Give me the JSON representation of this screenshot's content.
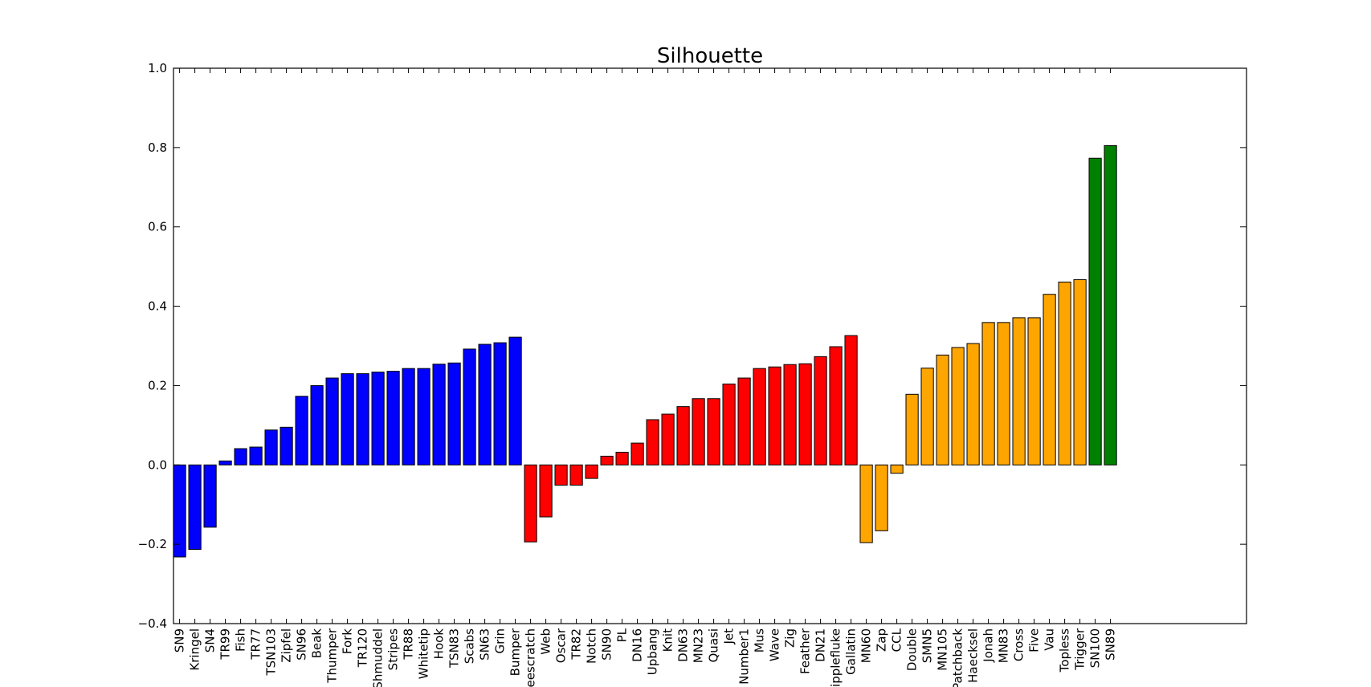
{
  "chart_data": {
    "type": "bar",
    "title": "Silhouette",
    "xlabel": "",
    "ylabel": "",
    "ylim": [
      -0.4,
      1.0
    ],
    "yticks": [
      "−0.4",
      "−0.2",
      "0.0",
      "0.2",
      "0.4",
      "0.6",
      "0.8",
      "1.0"
    ],
    "ytick_values": [
      -0.4,
      -0.2,
      0.0,
      0.2,
      0.4,
      0.6,
      0.8,
      1.0
    ],
    "grid": false,
    "colors": {
      "blue": "#0000ff",
      "red": "#ff0000",
      "orange": "#ffa500",
      "green": "#008000",
      "edge": "#000000"
    },
    "categories": [
      "SN9",
      "Kringel",
      "SN4",
      "TR99",
      "Fish",
      "TR77",
      "TSN103",
      "Zipfel",
      "SN96",
      "Beak",
      "Thumper",
      "Fork",
      "TR120",
      "Shmuddel",
      "Stripes",
      "TR88",
      "Whitetip",
      "Hook",
      "TSN83",
      "Scabs",
      "SN63",
      "Grin",
      "Bumper",
      "Beescratch",
      "Web",
      "Oscar",
      "TR82",
      "Notch",
      "SN90",
      "PL",
      "DN16",
      "Upbang",
      "Knit",
      "DN63",
      "MN23",
      "Quasi",
      "Jet",
      "Number1",
      "Mus",
      "Wave",
      "Zig",
      "Feather",
      "DN21",
      "Ripplefluke",
      "Gallatin",
      "MN60",
      "Zap",
      "CCL",
      "Double",
      "SMN5",
      "MN105",
      "Patchback",
      "Haecksel",
      "Jonah",
      "MN83",
      "Cross",
      "Five",
      "Vau",
      "Topless",
      "Trigger",
      "SN100",
      "SN89"
    ],
    "values": [
      -0.232,
      -0.213,
      -0.157,
      0.01,
      0.041,
      0.045,
      0.088,
      0.095,
      0.173,
      0.2,
      0.219,
      0.23,
      0.23,
      0.234,
      0.236,
      0.243,
      0.243,
      0.254,
      0.257,
      0.292,
      0.304,
      0.308,
      0.322,
      -0.194,
      -0.131,
      -0.051,
      -0.051,
      -0.034,
      0.022,
      0.032,
      0.055,
      0.114,
      0.128,
      0.147,
      0.167,
      0.167,
      0.204,
      0.219,
      0.243,
      0.247,
      0.253,
      0.255,
      0.273,
      0.298,
      0.326,
      -0.196,
      -0.166,
      -0.021,
      0.178,
      0.244,
      0.277,
      0.296,
      0.306,
      0.359,
      0.359,
      0.371,
      0.371,
      0.43,
      0.461,
      0.467,
      0.773,
      0.805
    ],
    "bar_colors": [
      "blue",
      "blue",
      "blue",
      "blue",
      "blue",
      "blue",
      "blue",
      "blue",
      "blue",
      "blue",
      "blue",
      "blue",
      "blue",
      "blue",
      "blue",
      "blue",
      "blue",
      "blue",
      "blue",
      "blue",
      "blue",
      "blue",
      "blue",
      "red",
      "red",
      "red",
      "red",
      "red",
      "red",
      "red",
      "red",
      "red",
      "red",
      "red",
      "red",
      "red",
      "red",
      "red",
      "red",
      "red",
      "red",
      "red",
      "red",
      "red",
      "red",
      "orange",
      "orange",
      "orange",
      "orange",
      "orange",
      "orange",
      "orange",
      "orange",
      "orange",
      "orange",
      "orange",
      "orange",
      "orange",
      "orange",
      "orange",
      "green",
      "green"
    ]
  }
}
